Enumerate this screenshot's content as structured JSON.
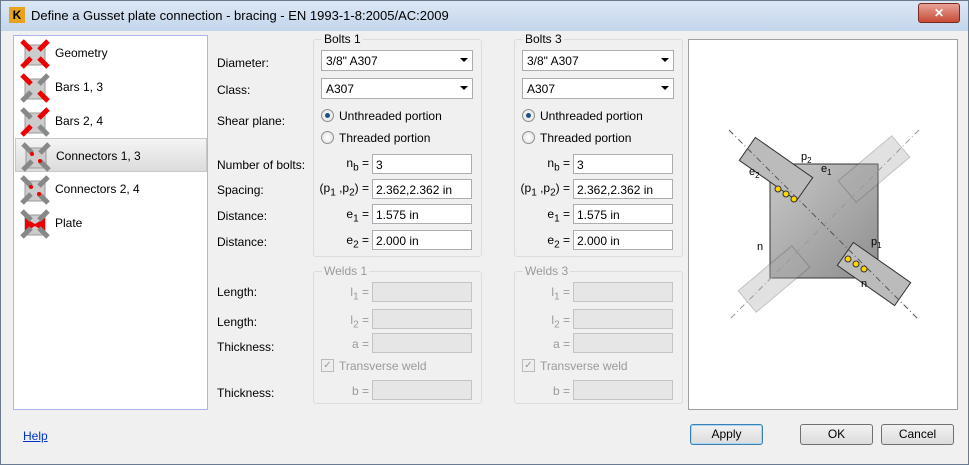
{
  "window": {
    "title": "Define a Gusset plate connection - bracing  - EN 1993-1-8:2005/AC:2009",
    "close": "✕"
  },
  "sidebar": {
    "items": [
      {
        "label": "Geometry"
      },
      {
        "label": "Bars 1, 3"
      },
      {
        "label": "Bars 2, 4"
      },
      {
        "label": "Connectors 1, 3",
        "selected": true
      },
      {
        "label": "Connectors 2, 4"
      },
      {
        "label": "Plate"
      }
    ]
  },
  "labels": {
    "diameter": "Diameter:",
    "class": "Class:",
    "shear": "Shear plane:",
    "nbolts": "Number of bolts:",
    "spacing": "Spacing:",
    "distance1": "Distance:",
    "distance2": "Distance:",
    "length1": "Length:",
    "length2": "Length:",
    "thickness1": "Thickness:",
    "thickness2": "Thickness:"
  },
  "symbols": {
    "nb": "n",
    "nb_sub": "b",
    "p": "(p",
    "p1": "1",
    "p2": "2",
    "e": "e",
    "one": "1",
    "two": "2",
    "l": "l",
    "a": "a =",
    "b": "b =",
    "eq": "=",
    "comma": " ,p",
    "close": ") ="
  },
  "bolts1": {
    "title": "Bolts 1",
    "diameter": "3/8\" A307",
    "class": "A307",
    "unthreaded": "Unthreaded portion",
    "threaded": "Threaded portion",
    "shear_selected": "Unthreaded portion",
    "nb": "3",
    "spacing": "2.362,2.362 in",
    "e1": "1.575 in",
    "e2": "2.000 in"
  },
  "bolts3": {
    "title": "Bolts 3",
    "diameter": "3/8\" A307",
    "class": "A307",
    "unthreaded": "Unthreaded portion",
    "threaded": "Threaded portion",
    "shear_selected": "Unthreaded portion",
    "nb": "3",
    "spacing": "2.362,2.362 in",
    "e1": "1.575 in",
    "e2": "2.000 in"
  },
  "welds1": {
    "title": "Welds 1",
    "transverse": "Transverse weld",
    "transverse_checked": true
  },
  "welds3": {
    "title": "Welds 3",
    "transverse": "Transverse weld",
    "transverse_checked": true
  },
  "diagram": {
    "p2": "p",
    "e1": "e",
    "n": "n"
  },
  "footer": {
    "help": "Help",
    "apply": "Apply",
    "ok": "OK",
    "cancel": "Cancel"
  }
}
